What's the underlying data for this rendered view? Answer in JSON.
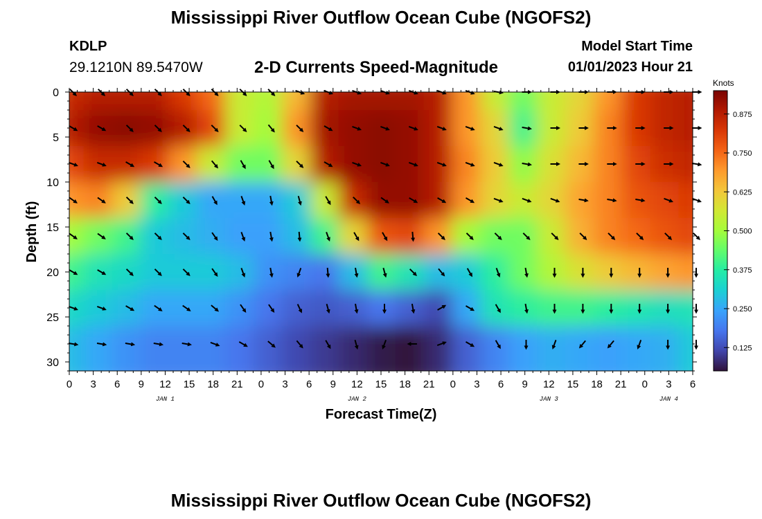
{
  "header": {
    "title": "Mississippi River Outflow Ocean Cube (NGOFS2)",
    "station_id": "KDLP",
    "coordinates": "29.1210N  89.5470W",
    "product": "2-D Currents Speed-Magnitude",
    "model_start_label": "Model Start Time",
    "model_start_value": "01/01/2023 Hour 21"
  },
  "footer": {
    "title": "Mississippi River Outflow Ocean Cube (NGOFS2)"
  },
  "colors": {
    "colormap": [
      "#30123b",
      "#4145ab",
      "#4675ed",
      "#39a2fc",
      "#1bcfd4",
      "#24eca6",
      "#61fc6c",
      "#a4fc3b",
      "#d1e834",
      "#f3c63a",
      "#fe9b2d",
      "#f36315",
      "#d93806",
      "#b11901",
      "#7a0403"
    ],
    "arrow": "#000000",
    "axis": "#000000"
  },
  "chart_data": {
    "type": "heatmap",
    "title": "2-D Currents Speed-Magnitude",
    "xlabel": "Forecast Time(Z)",
    "ylabel": "Depth (ft)",
    "x_hours": [
      0,
      3,
      6,
      9,
      12,
      15,
      18,
      21,
      24,
      27,
      30,
      33,
      36,
      39,
      42,
      45,
      48,
      51,
      54,
      57,
      60,
      63,
      66,
      69,
      72,
      75,
      78
    ],
    "x_tick_labels": [
      "0",
      "3",
      "6",
      "9",
      "12",
      "15",
      "18",
      "21",
      "0",
      "3",
      "6",
      "9",
      "12",
      "15",
      "18",
      "21",
      "0",
      "3",
      "6",
      "9",
      "12",
      "15",
      "18",
      "21",
      "0",
      "3",
      "6"
    ],
    "xlim": [
      0,
      78
    ],
    "date_labels": [
      {
        "label": "JAN 1",
        "hour": 12
      },
      {
        "label": "JAN 2",
        "hour": 36
      },
      {
        "label": "JAN 3",
        "hour": 60
      },
      {
        "label": "JAN 4",
        "hour": 75
      }
    ],
    "depths_ft": [
      0,
      4,
      8,
      12,
      16,
      20,
      24,
      28
    ],
    "y_ticks": [
      0,
      5,
      10,
      15,
      20,
      25,
      30
    ],
    "ylim": [
      0,
      31
    ],
    "colorbar": {
      "unit": "Knots",
      "range": [
        0.05,
        0.95
      ],
      "tick_values": [
        0.125,
        0.25,
        0.375,
        0.5,
        0.625,
        0.75,
        0.875
      ],
      "tick_labels": [
        "0.125",
        "0.250",
        "0.375",
        "0.500",
        "0.625",
        "0.750",
        "0.875"
      ]
    },
    "speed_knots": [
      [
        0.85,
        0.88,
        0.88,
        0.88,
        0.82,
        0.75,
        0.55,
        0.52,
        0.65,
        0.88,
        0.9,
        0.9,
        0.9,
        0.88,
        0.7,
        0.55,
        0.45,
        0.55,
        0.6,
        0.7,
        0.82,
        0.86,
        0.88
      ],
      [
        0.88,
        0.92,
        0.93,
        0.92,
        0.88,
        0.8,
        0.55,
        0.5,
        0.7,
        0.9,
        0.92,
        0.93,
        0.92,
        0.88,
        0.7,
        0.6,
        0.4,
        0.55,
        0.62,
        0.72,
        0.82,
        0.86,
        0.88
      ],
      [
        0.8,
        0.85,
        0.85,
        0.82,
        0.7,
        0.55,
        0.45,
        0.45,
        0.6,
        0.88,
        0.92,
        0.93,
        0.92,
        0.88,
        0.72,
        0.62,
        0.48,
        0.58,
        0.65,
        0.72,
        0.8,
        0.84,
        0.86
      ],
      [
        0.7,
        0.72,
        0.62,
        0.38,
        0.3,
        0.25,
        0.25,
        0.25,
        0.3,
        0.55,
        0.85,
        0.92,
        0.92,
        0.88,
        0.7,
        0.6,
        0.55,
        0.6,
        0.68,
        0.72,
        0.78,
        0.8,
        0.82
      ],
      [
        0.5,
        0.45,
        0.4,
        0.3,
        0.28,
        0.26,
        0.24,
        0.24,
        0.28,
        0.4,
        0.6,
        0.78,
        0.8,
        0.7,
        0.5,
        0.45,
        0.45,
        0.55,
        0.66,
        0.72,
        0.75,
        0.78,
        0.8
      ],
      [
        0.4,
        0.35,
        0.33,
        0.3,
        0.3,
        0.3,
        0.28,
        0.22,
        0.2,
        0.18,
        0.28,
        0.4,
        0.35,
        0.28,
        0.3,
        0.38,
        0.45,
        0.52,
        0.58,
        0.62,
        0.65,
        0.68,
        0.7
      ],
      [
        0.33,
        0.3,
        0.28,
        0.25,
        0.25,
        0.25,
        0.22,
        0.18,
        0.15,
        0.14,
        0.15,
        0.18,
        0.15,
        0.12,
        0.25,
        0.35,
        0.38,
        0.4,
        0.4,
        0.38,
        0.36,
        0.34,
        0.35
      ],
      [
        0.28,
        0.25,
        0.22,
        0.2,
        0.2,
        0.2,
        0.18,
        0.15,
        0.12,
        0.1,
        0.08,
        0.06,
        0.05,
        0.08,
        0.15,
        0.2,
        0.24,
        0.26,
        0.25,
        0.24,
        0.25,
        0.26,
        0.3
      ]
    ],
    "direction_deg": [
      [
        135,
        135,
        135,
        135,
        135,
        135,
        135,
        135,
        110,
        110,
        110,
        110,
        110,
        110,
        110,
        100,
        90,
        90,
        90,
        90,
        90,
        90,
        90
      ],
      [
        120,
        120,
        135,
        135,
        135,
        135,
        135,
        140,
        135,
        120,
        110,
        110,
        110,
        110,
        110,
        110,
        100,
        90,
        90,
        90,
        90,
        90,
        90
      ],
      [
        110,
        110,
        120,
        120,
        135,
        140,
        150,
        150,
        135,
        120,
        110,
        110,
        110,
        110,
        110,
        110,
        100,
        90,
        90,
        90,
        90,
        90,
        100
      ],
      [
        125,
        125,
        135,
        135,
        135,
        150,
        160,
        170,
        165,
        150,
        135,
        125,
        120,
        120,
        120,
        110,
        110,
        110,
        100,
        100,
        100,
        110,
        110
      ],
      [
        125,
        125,
        135,
        135,
        135,
        145,
        160,
        170,
        175,
        160,
        150,
        150,
        175,
        135,
        135,
        135,
        135,
        135,
        135,
        135,
        135,
        135,
        135
      ],
      [
        120,
        120,
        135,
        135,
        135,
        145,
        160,
        170,
        200,
        175,
        170,
        165,
        135,
        140,
        150,
        160,
        170,
        180,
        180,
        180,
        180,
        180,
        180
      ],
      [
        110,
        110,
        120,
        125,
        125,
        130,
        145,
        145,
        155,
        165,
        170,
        180,
        170,
        60,
        120,
        150,
        170,
        180,
        180,
        180,
        180,
        180,
        180
      ],
      [
        100,
        100,
        100,
        100,
        100,
        110,
        120,
        130,
        140,
        150,
        165,
        200,
        270,
        70,
        120,
        150,
        180,
        200,
        220,
        220,
        200,
        180,
        180
      ]
    ]
  }
}
